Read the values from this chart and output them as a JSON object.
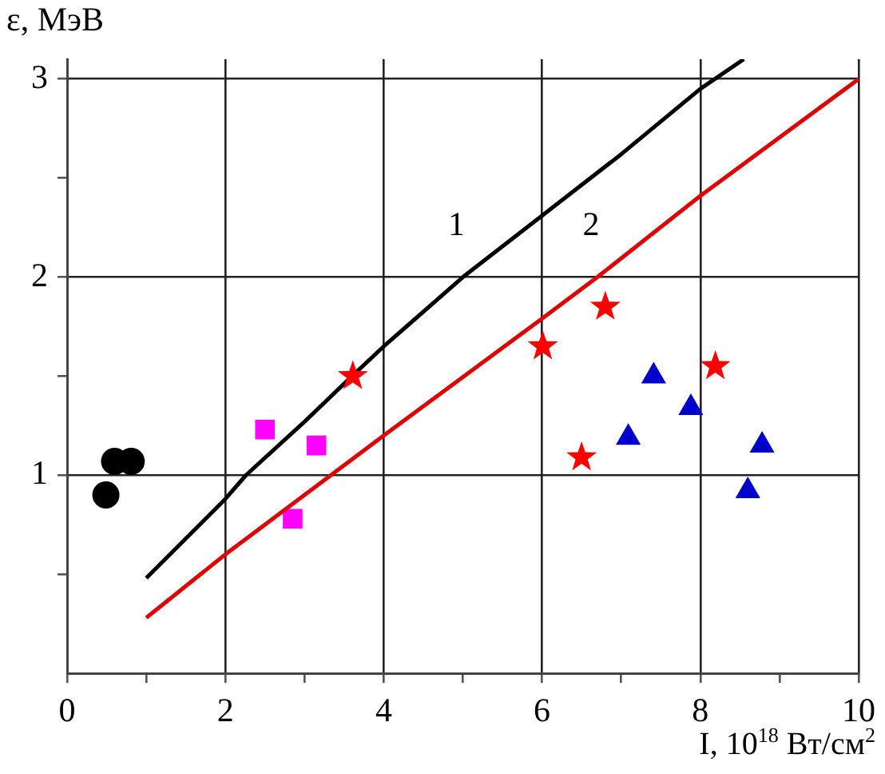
{
  "chart_data": {
    "type": "scatter",
    "xlabel": "I, 10$^{18}$ Вт/см$^{2}$",
    "ylabel": "ε, МэВ",
    "xlim": [
      0,
      10
    ],
    "ylim": [
      0,
      3.1
    ],
    "xticks": [
      0,
      {
        "value": 1,
        "label": null
      },
      2,
      {
        "value": 3,
        "label": null
      },
      4,
      {
        "value": 5,
        "label": null
      },
      6,
      {
        "value": 7,
        "label": null
      },
      8,
      {
        "value": 9,
        "label": null
      },
      10
    ],
    "yticks": [
      {
        "value": 0.5,
        "label": null
      },
      1,
      {
        "value": 1.5,
        "label": null
      },
      2,
      {
        "value": 2.5,
        "label": null
      },
      3
    ],
    "grid": true,
    "legend": false,
    "series": [
      {
        "type": "line",
        "name": "1",
        "color": "#000000",
        "marker": "none",
        "line_style": "solid",
        "x": [
          1,
          2,
          2.26,
          3,
          3.6,
          4,
          5,
          6,
          7,
          8,
          8.55
        ],
        "values": [
          0.48,
          0.88,
          1,
          1.27,
          1.5,
          1.65,
          2,
          2.31,
          2.62,
          2.95,
          3.1
        ]
      },
      {
        "type": "line",
        "name": "2",
        "color": "#e00000",
        "marker": "none",
        "line_style": "solid",
        "x": [
          1,
          2,
          4,
          6,
          6.7,
          8,
          10
        ],
        "values": [
          0.28,
          0.6,
          1.2,
          1.79,
          2,
          2.41,
          3
        ]
      },
      {
        "type": "scatter",
        "color": "#000000",
        "marker": "circle",
        "x": [
          0.49,
          0.6,
          0.81
        ],
        "values": [
          0.9,
          1.07,
          1.07
        ]
      },
      {
        "type": "scatter",
        "color": "#ff00ff",
        "marker": "square",
        "x": [
          2.5,
          3.15,
          2.85
        ],
        "values": [
          1.23,
          1.15,
          0.78
        ]
      },
      {
        "type": "scatter",
        "color": "#ff0000",
        "marker": "star",
        "x": [
          3.61,
          6.01,
          6.8,
          8.19,
          6.5
        ],
        "values": [
          1.5,
          1.65,
          1.85,
          1.55,
          1.09
        ]
      },
      {
        "type": "scatter",
        "color": "#0000cc",
        "marker": "triangle",
        "x": [
          7.41,
          7.88,
          7.09,
          8.78,
          8.6
        ],
        "values": [
          1.5,
          1.34,
          1.19,
          1.15,
          0.92
        ]
      }
    ]
  }
}
